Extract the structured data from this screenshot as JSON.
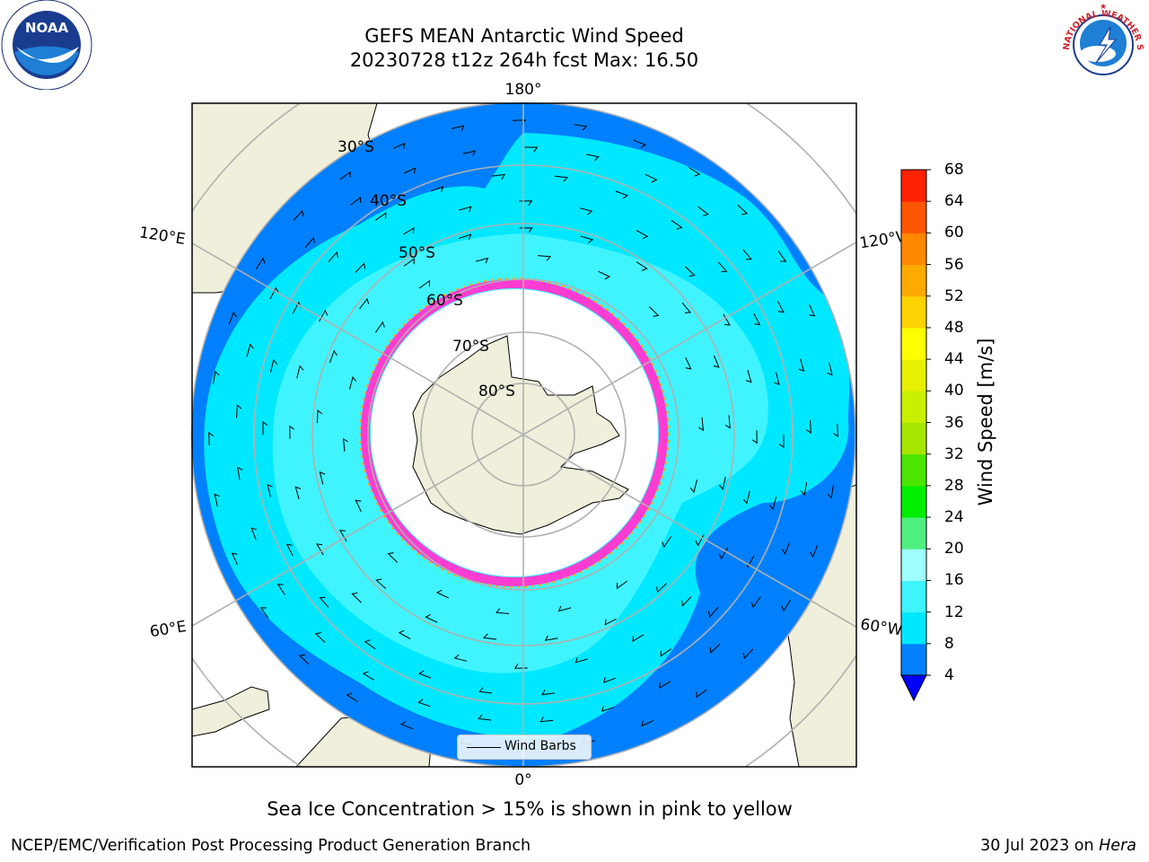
{
  "header": {
    "title_line1": "GEFS MEAN Antarctic Wind Speed",
    "title_line2": "20230728 t12z 264h fcst   Max: 16.50"
  },
  "map": {
    "projection": "south-polar-stereographic",
    "latitude_labels": [
      "30°S",
      "40°S",
      "50°S",
      "60°S",
      "70°S",
      "80°S"
    ],
    "longitude_labels": {
      "top": "180°",
      "bottom": "0°",
      "upper_left": "120°E",
      "upper_right": "120°W",
      "lower_left": "60°E",
      "lower_right": "60°W"
    },
    "colors": {
      "land": "#efefdb",
      "ocean_low": "#0080ff",
      "ocean_mid": "#00e8ff",
      "ocean_high": "#40f4ff",
      "sea_ice_edge": "#ff3cd2",
      "grid": "#b0b0b0"
    },
    "legend_label": "Wind Barbs"
  },
  "colorbar": {
    "title": "Wind Speed [m/s]",
    "ticks": [
      "4",
      "8",
      "12",
      "16",
      "20",
      "24",
      "28",
      "32",
      "36",
      "40",
      "44",
      "48",
      "52",
      "56",
      "60",
      "64",
      "68"
    ],
    "colors": [
      "#0080ff",
      "#00e8ff",
      "#40f4ff",
      "#a0ffff",
      "#50f080",
      "#00ee00",
      "#4ae600",
      "#a6e600",
      "#c8f000",
      "#e6f000",
      "#ffff00",
      "#ffd200",
      "#ffaa00",
      "#ff8800",
      "#ff5500",
      "#ff2200"
    ],
    "extend_color": "#0000ff"
  },
  "note": "Sea Ice Concentration > 15% is shown in pink to yellow",
  "footer": {
    "left": "NCEP/EMC/Verification Post Processing Product Generation Branch",
    "date": "30 Jul 2023 on ",
    "machine": "Hera"
  },
  "logos": {
    "noaa_text": "NOAA",
    "nws_text": "NATIONAL WEATHER SERVICE"
  }
}
